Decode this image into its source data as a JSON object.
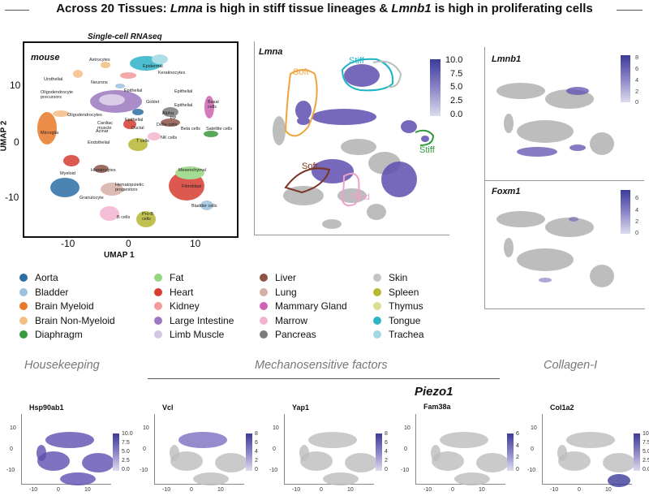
{
  "title": {
    "prefix": "Across 20 Tissues: ",
    "gene1": "Lmna",
    "middle": " is high in stiff tissue lineages & ",
    "gene2": "Lmnb1",
    "suffix": " is high in proliferating cells"
  },
  "umap_panel": {
    "header": "Single-cell RNAseq",
    "species": "mouse",
    "xlabel": "UMAP 1",
    "ylabel": "UMAP 2",
    "xticks": [
      "-10",
      "0",
      "10"
    ],
    "yticks": [
      "10",
      "0",
      "-10"
    ],
    "cell_labels": {
      "astrocytes": "Astrocytes",
      "epidermal": "Epidermal",
      "keratinocytes": "Keratinocytes",
      "urothelial": "Urothelial",
      "neurons": "Neurons",
      "oligo_prec": "Oligodendrocyte precursors",
      "epithelial1": "Epithelial",
      "epithelial2": "Epithelial",
      "goblet": "Goblet",
      "epithelial3": "Epithelial",
      "basal": "Basal cells",
      "oligodendrocytes": "Oligodendrocytes",
      "cardiac": "Cardiac muscle",
      "epithelial4": "Epithelial",
      "alpha": "Alpha",
      "pp": "PP",
      "delta": "Delta cells",
      "beta": "Beta cells",
      "satellite": "Satellite cells",
      "microglia": "Microglia",
      "acinar": "Acinar",
      "ductal": "Ductal",
      "endothelial": "Endothelial",
      "tcells": "T cells",
      "nkcells": "NK cells",
      "myeloid": "Myeloid",
      "hepatocytes": "Hepatocytes",
      "mesenchymal": "Mesenchymal",
      "fibroblast": "Fibroblast",
      "hematopoietic": "Hematopoietic progenitors",
      "granulocyte": "Granulocyte",
      "bladder": "Bladder cells",
      "bcells": "B cells",
      "probcells": "Pro-B cells"
    }
  },
  "lmna_panel": {
    "gene": "Lmna",
    "colorbar_ticks": [
      "10.0",
      "7.5",
      "5.0",
      "2.5",
      "0.0"
    ],
    "annotations": {
      "soft_top": "Soft",
      "stiff_top": "Stiff",
      "stiff_right": "Stiff",
      "soft_bottom": "Soft",
      "fluid": "Fluid"
    },
    "colors": {
      "soft": "#f0a33a",
      "stiff_top": "#1fb3c6",
      "stiff_right": "#2e9a3a",
      "soft_bottom": "#7b3520",
      "fluid": "#f19fcb"
    }
  },
  "lmnb1_panel": {
    "gene": "Lmnb1",
    "colorbar_ticks": [
      "8",
      "6",
      "4",
      "2",
      "0"
    ]
  },
  "foxm1_panel": {
    "gene": "Foxm1",
    "colorbar_ticks": [
      "6",
      "4",
      "2",
      "0"
    ]
  },
  "legend": [
    {
      "label": "Aorta",
      "color": "#2c6fa5"
    },
    {
      "label": "Bladder",
      "color": "#9cc2e0"
    },
    {
      "label": "Brain Myeloid",
      "color": "#e8792a"
    },
    {
      "label": "Brain Non-Myeloid",
      "color": "#f5be84"
    },
    {
      "label": "Diaphragm",
      "color": "#3a9a3e"
    },
    {
      "label": "Fat",
      "color": "#93d77f"
    },
    {
      "label": "Heart",
      "color": "#d63d31"
    },
    {
      "label": "Kidney",
      "color": "#f39b9a"
    },
    {
      "label": "Large Intestine",
      "color": "#9c79c0"
    },
    {
      "label": "Limb Muscle",
      "color": "#d3c5e4"
    },
    {
      "label": "Liver",
      "color": "#8c5548"
    },
    {
      "label": "Lung",
      "color": "#d5b0a6"
    },
    {
      "label": "Mammary Gland",
      "color": "#cf63b3"
    },
    {
      "label": "Marrow",
      "color": "#f3b4d1"
    },
    {
      "label": "Pancreas",
      "color": "#7b7b7b"
    },
    {
      "label": "Skin",
      "color": "#c5c5c5"
    },
    {
      "label": "Spleen",
      "color": "#b6b733"
    },
    {
      "label": "Thymus",
      "color": "#dcdc92"
    },
    {
      "label": "Tongue",
      "color": "#2fb3c7"
    },
    {
      "label": "Trachea",
      "color": "#a0d9e4"
    }
  ],
  "sections": {
    "housekeeping": "Housekeeping",
    "mechano": "Mechanosensitive factors",
    "collagen": "Collagen-I",
    "piezo": "Piezo1"
  },
  "small_panels": [
    {
      "gene": "Hsp90ab1",
      "yticks": [
        "10",
        "0",
        "-10"
      ],
      "xticks": [
        "-10",
        "0",
        "10"
      ],
      "cb": [
        "10.0",
        "7.5",
        "5.0",
        "2.5",
        "0.0"
      ]
    },
    {
      "gene": "Vcl",
      "yticks": [
        "10",
        "0",
        "-10"
      ],
      "xticks": [
        "-10",
        "0",
        "10"
      ],
      "cb": [
        "8",
        "6",
        "4",
        "2",
        "0"
      ]
    },
    {
      "gene": "Yap1",
      "yticks": [
        "10",
        "0",
        "-10"
      ],
      "xticks": [
        "-10",
        "0",
        "10"
      ],
      "cb": [
        "8",
        "6",
        "4",
        "2",
        "0"
      ]
    },
    {
      "gene": "Fam38a",
      "yticks": [
        "10",
        "0",
        "-10"
      ],
      "xticks": [
        "-10",
        "0",
        "10"
      ],
      "cb": [
        "6",
        "4",
        "2",
        "0"
      ]
    },
    {
      "gene": "Col1a2",
      "yticks": [
        "10",
        "0",
        "-10"
      ],
      "xticks": [
        "-10",
        "0",
        "10"
      ],
      "cb": [
        "10.0",
        "7.5",
        "5.0",
        "2.5",
        "0.0"
      ]
    }
  ]
}
